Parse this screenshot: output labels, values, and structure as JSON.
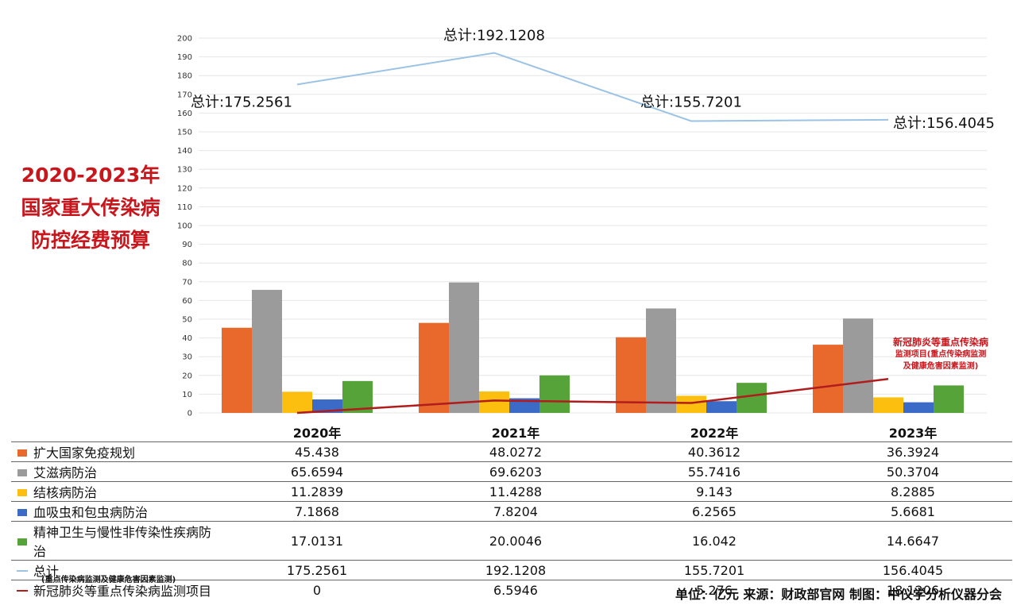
{
  "title": {
    "line1": "2020-2023年",
    "line2": "国家重大传染病",
    "line3": "防控经费预算"
  },
  "chart_data": {
    "type": "bar",
    "categories": [
      "2020年",
      "2021年",
      "2022年",
      "2023年"
    ],
    "ylim": [
      0,
      200
    ],
    "yticks": [
      0,
      10,
      20,
      30,
      40,
      50,
      60,
      70,
      80,
      90,
      100,
      110,
      120,
      130,
      140,
      150,
      160,
      170,
      180,
      190,
      200
    ],
    "series": [
      {
        "name": "扩大国家免疫规划",
        "kind": "bar",
        "color": "#e8692b",
        "values": [
          45.438,
          48.0272,
          40.3612,
          36.3924
        ],
        "labels": [
          "45.438",
          "48.0272",
          "40.3612",
          "36.3924"
        ]
      },
      {
        "name": "艾滋病防治",
        "kind": "bar",
        "color": "#9b9b9b",
        "values": [
          65.6594,
          69.6203,
          55.7416,
          50.3704
        ],
        "labels": [
          "65.6594",
          "69.6203",
          "55.7416",
          "50.3704"
        ]
      },
      {
        "name": "结核病防治",
        "kind": "bar",
        "color": "#fdbf0f",
        "values": [
          11.2839,
          11.4288,
          9.143,
          8.2885
        ],
        "labels": [
          "11.2839",
          "11.4288",
          "9.143",
          "8.2885"
        ]
      },
      {
        "name": "血吸虫和包虫病防治",
        "kind": "bar",
        "color": "#3b6bc6",
        "values": [
          7.1868,
          7.8204,
          6.2565,
          5.6681
        ],
        "labels": [
          "7.1868",
          "7.8204",
          "6.2565",
          "5.6681"
        ]
      },
      {
        "name": "精神卫生与慢性非传染性疾病防治",
        "kind": "bar",
        "color": "#56a33a",
        "values": [
          17.0131,
          20.0046,
          16.042,
          14.6647
        ],
        "labels": [
          "17.0131",
          "20.0046",
          "16.042",
          "14.6647"
        ]
      },
      {
        "name": "总计",
        "kind": "line",
        "color": "#9bc3e6",
        "values": [
          175.2561,
          192.1208,
          155.7201,
          156.4045
        ],
        "labels": [
          "175.2561",
          "192.1208",
          "155.7201",
          "156.4045"
        ]
      },
      {
        "name": "新冠肺炎等重点传染病监测项目",
        "kind": "line",
        "color": "#b11c1c",
        "values": [
          0,
          6.5946,
          5.276,
          18.1206
        ],
        "labels": [
          "0",
          "6.5946",
          "5.276",
          "18.1206"
        ]
      }
    ],
    "total_annotations": [
      "总计:175.2561",
      "总计:192.1208",
      "总计:155.7201",
      "总计:156.4045"
    ]
  },
  "covid_note": {
    "line1": "新冠肺炎等重点传染病",
    "line2": "监测项目(重点传染病监测",
    "line3": "及健康危害因素监测)"
  },
  "table": {
    "covid_sub": "(重点传染病监测及健康危害因素监测)"
  },
  "footer": "单位：亿元   来源：财政部官网   制图：中仪学分析仪器分会"
}
